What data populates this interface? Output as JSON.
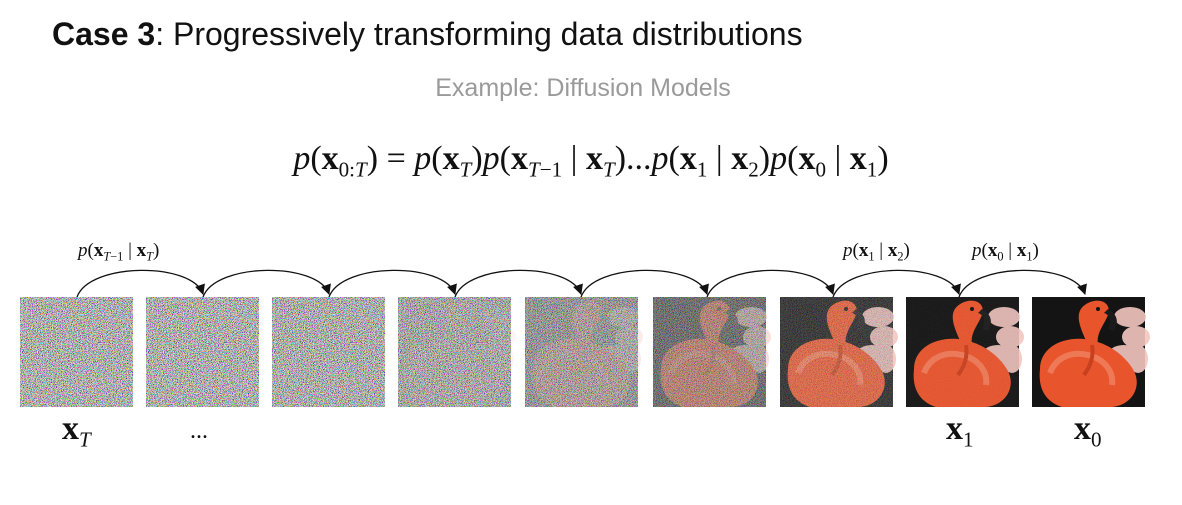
{
  "title": {
    "bold": "Case 3",
    "rest": ": Progressively transforming data distributions"
  },
  "subtitle": "Example: Diffusion Models",
  "equation": {
    "lhs": "p(x0:T)",
    "rhs": [
      "p(xT)",
      "p(xT−1 | xT)",
      "...",
      "p(x1 | x2)",
      "p(x0 | x1)"
    ]
  },
  "arrow_labels": [
    "p(xT−1 | xT)",
    "p(x1 | x2)",
    "p(x0 | x1)"
  ],
  "frame_labels": [
    "xT",
    "...",
    "x1",
    "x0"
  ],
  "frames": [
    {
      "noise": 1.0
    },
    {
      "noise": 1.0
    },
    {
      "noise": 0.97
    },
    {
      "noise": 0.9
    },
    {
      "noise": 0.75
    },
    {
      "noise": 0.55
    },
    {
      "noise": 0.3
    },
    {
      "noise": 0.05
    },
    {
      "noise": 0.0
    }
  ],
  "colors": {
    "flamingo": "#e8542c",
    "flamingo_light": "#f2876a",
    "background": "#141414",
    "feathers": "#f4c6c0",
    "subtitle": "#9a9a9a"
  }
}
